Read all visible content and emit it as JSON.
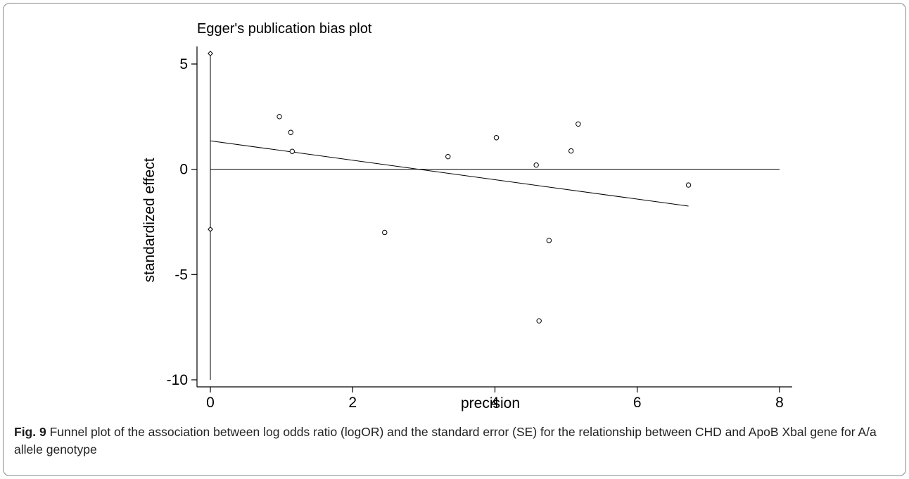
{
  "figure": {
    "label": "Fig. 9",
    "caption": "Funnel plot of the association between log odds ratio (logOR) and the standard error (SE) for the relationship between CHD and ApoB Xbal gene for A/a allele genotype"
  },
  "chart_data": {
    "type": "scatter",
    "title": "Egger's publication bias plot",
    "xlabel": "precision",
    "ylabel": "standardized effect",
    "xlim": [
      0,
      8
    ],
    "ylim": [
      -10,
      5.5
    ],
    "xticks": [
      "0",
      "2",
      "4",
      "6",
      "8"
    ],
    "yticks": [
      "5",
      "0",
      "-5",
      "-10"
    ],
    "grid": false,
    "series": [
      {
        "marker": "circle",
        "points": [
          {
            "x": 0.97,
            "y": 2.5
          },
          {
            "x": 1.13,
            "y": 1.75
          },
          {
            "x": 1.15,
            "y": 0.85
          },
          {
            "x": 2.45,
            "y": -3.0
          },
          {
            "x": 3.34,
            "y": 0.6
          },
          {
            "x": 4.02,
            "y": 1.5
          },
          {
            "x": 4.58,
            "y": 0.2
          },
          {
            "x": 4.62,
            "y": -7.2
          },
          {
            "x": 4.76,
            "y": -3.38
          },
          {
            "x": 5.07,
            "y": 0.87
          },
          {
            "x": 5.17,
            "y": 2.15
          },
          {
            "x": 6.72,
            "y": -0.75
          }
        ]
      }
    ],
    "reference_line_y": 0,
    "regression_line": [
      {
        "x": 0,
        "y": 1.35
      },
      {
        "x": 6.72,
        "y": -1.75
      }
    ],
    "intercept_ci": {
      "x": 0,
      "upper": 5.5,
      "lower": -2.85,
      "line_low": -10
    }
  }
}
